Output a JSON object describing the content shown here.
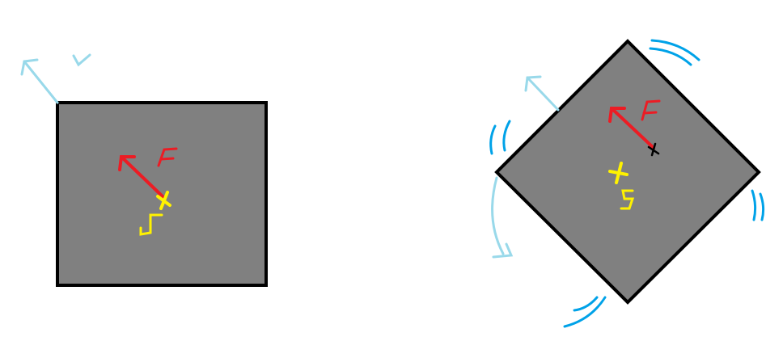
{
  "colors": {
    "background": "#ffffff",
    "box_fill": "#808080",
    "box_outline": "#000000",
    "force": "#ec1c24",
    "center_of_mass": "#fff200",
    "velocity": "#99d9ea",
    "rotation": "#00a2e8",
    "pivot_mark": "#000000"
  },
  "left_figure": {
    "force_label": "F",
    "com_label": "S"
  },
  "right_figure": {
    "force_label": "F",
    "com_label": "S"
  }
}
